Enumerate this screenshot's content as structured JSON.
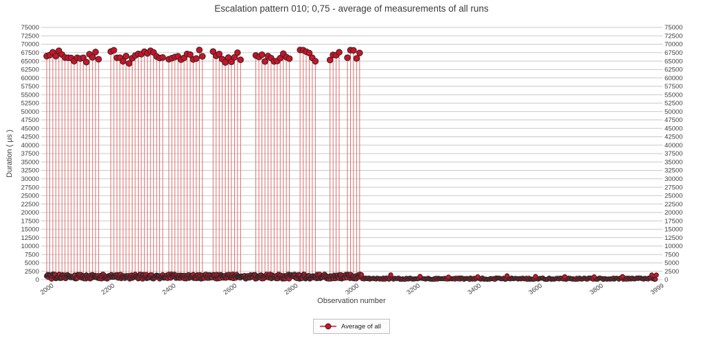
{
  "chart_data": {
    "type": "stem-scatter",
    "title": "Escalation pattern 010; 0,75 - average of measurements of all runs",
    "xlabel": "Observation number",
    "ylabel": "Duration ( µs )",
    "series_name": "Average of all",
    "xlim": [
      2000,
      3999
    ],
    "ylim": [
      0,
      75000
    ],
    "x_ticks": [
      2000,
      2200,
      2400,
      2600,
      2800,
      3000,
      3200,
      3400,
      3600,
      3800,
      3999
    ],
    "y_tick_step": 2500,
    "y_ticks": [
      0,
      2500,
      5000,
      7500,
      10000,
      12500,
      15000,
      17500,
      20000,
      22500,
      25000,
      27500,
      30000,
      32500,
      35000,
      37500,
      40000,
      42500,
      45000,
      47500,
      50000,
      52500,
      55000,
      57500,
      60000,
      62500,
      65000,
      67500,
      70000,
      72500,
      75000
    ],
    "y_axis_mirrored": true,
    "grid": "horizontal",
    "legend": {
      "label": "Average of all",
      "position": "bottom-center"
    },
    "high_plateau": {
      "description": "Clusters of observations between 2000 and ~3030 with average duration ~64000-68300 µs, drawn as red stems with circular markers; gaps between clusters",
      "segments": [
        [
          2000,
          2175
        ],
        [
          2210,
          2380
        ],
        [
          2400,
          2515
        ],
        [
          2545,
          2640
        ],
        [
          2685,
          2798
        ],
        [
          2830,
          2885
        ],
        [
          2928,
          2962
        ],
        [
          2985,
          3030
        ]
      ],
      "spacing": 10,
      "value_range": [
        64200,
        68300
      ],
      "mean_approx": 66400
    },
    "low_band": {
      "description": "All remaining observations form a dense near-zero band of overlapping markers",
      "left": {
        "range": [
          2000,
          3030
        ],
        "value_range": [
          250,
          1600
        ]
      },
      "right": {
        "range": [
          3031,
          3999
        ],
        "value_range": [
          80,
          560
        ],
        "bump_value_range": [
          800,
          1500
        ],
        "bump_every": 95
      }
    },
    "colors": {
      "marker_fill": "#CE1126",
      "marker_outline": "#2a2a2a",
      "stem": "#E06A6A",
      "gridline": "#C8C8C8",
      "tick_text": "#3f3f3f",
      "title_text": "#3a3a3a"
    }
  }
}
